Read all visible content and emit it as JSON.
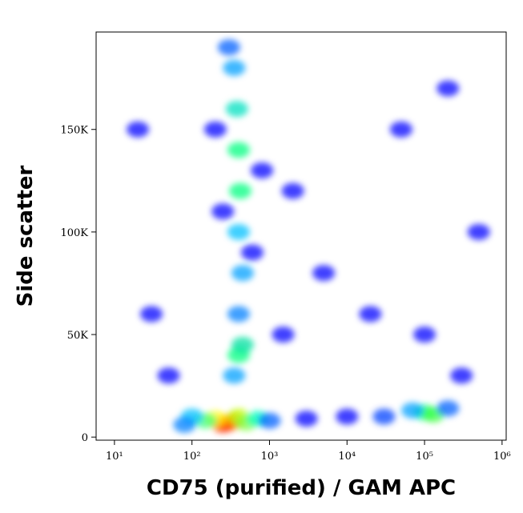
{
  "chart_data": {
    "type": "scatter",
    "x_label": "CD75 (purified) / GAM APC",
    "y_label": "Side scatter",
    "x_log": true,
    "xlim": [
      5.8,
      1130000
    ],
    "xticks": [
      {
        "value": 10,
        "label": "10¹"
      },
      {
        "value": 100,
        "label": "10²"
      },
      {
        "value": 1000,
        "label": "10³"
      },
      {
        "value": 10000,
        "label": "10⁴"
      },
      {
        "value": 100000,
        "label": "10⁵"
      },
      {
        "value": 1000000,
        "label": "10⁶"
      }
    ],
    "ylim": [
      -1500,
      197500
    ],
    "yticks": [
      0,
      {
        "value": 50000,
        "label": "50K"
      },
      {
        "value": 100000,
        "label": "100K"
      },
      {
        "value": 150000,
        "label": "150K"
      }
    ],
    "x": [
      300,
      250,
      350,
      200,
      400,
      150,
      500,
      100,
      700,
      80,
      1000,
      3000,
      10000,
      30000,
      100000,
      130000,
      70000,
      200000,
      400,
      450,
      350,
      400,
      450,
      400,
      420,
      400,
      380,
      350,
      300,
      600,
      250,
      200,
      800,
      2000,
      5000,
      20000,
      100000,
      300000,
      50,
      30,
      20,
      1500,
      50000,
      200000,
      500000
    ],
    "y": [
      7000,
      6000,
      8000,
      9000,
      10000,
      8000,
      7000,
      10000,
      9000,
      6000,
      8000,
      9000,
      10000,
      10000,
      12000,
      11000,
      13000,
      14000,
      40000,
      45000,
      30000,
      60000,
      80000,
      100000,
      120000,
      140000,
      160000,
      180000,
      190000,
      90000,
      110000,
      150000,
      130000,
      120000,
      80000,
      60000,
      50000,
      30000,
      30000,
      60000,
      150000,
      50000,
      150000,
      170000,
      100000
    ],
    "colors": [
      "#ff0000",
      "#ff3000",
      "#ff8000",
      "#ffff00",
      "#c0ff00",
      "#40ff80",
      "#80ff40",
      "#00c0ff",
      "#00ffc0",
      "#0080ff",
      "#0060ff",
      "#0000ff",
      "#0000ff",
      "#0040ff",
      "#00ff80",
      "#40ff40",
      "#00a0ff",
      "#0060ff",
      "#00ff80",
      "#00e0a0",
      "#00a0ff",
      "#0080ff",
      "#00a0ff",
      "#00c0ff",
      "#00ff80",
      "#00ff80",
      "#00e0c0",
      "#00a0ff",
      "#0060ff",
      "#0000ff",
      "#0000ff",
      "#0000ff",
      "#0000ff",
      "#0000ff",
      "#0000ff",
      "#0000ff",
      "#0000ff",
      "#0000ff",
      "#0000ff",
      "#0000ff",
      "#0000ff",
      "#0000ff",
      "#0000ff",
      "#0000ff",
      "#0000ff"
    ]
  }
}
